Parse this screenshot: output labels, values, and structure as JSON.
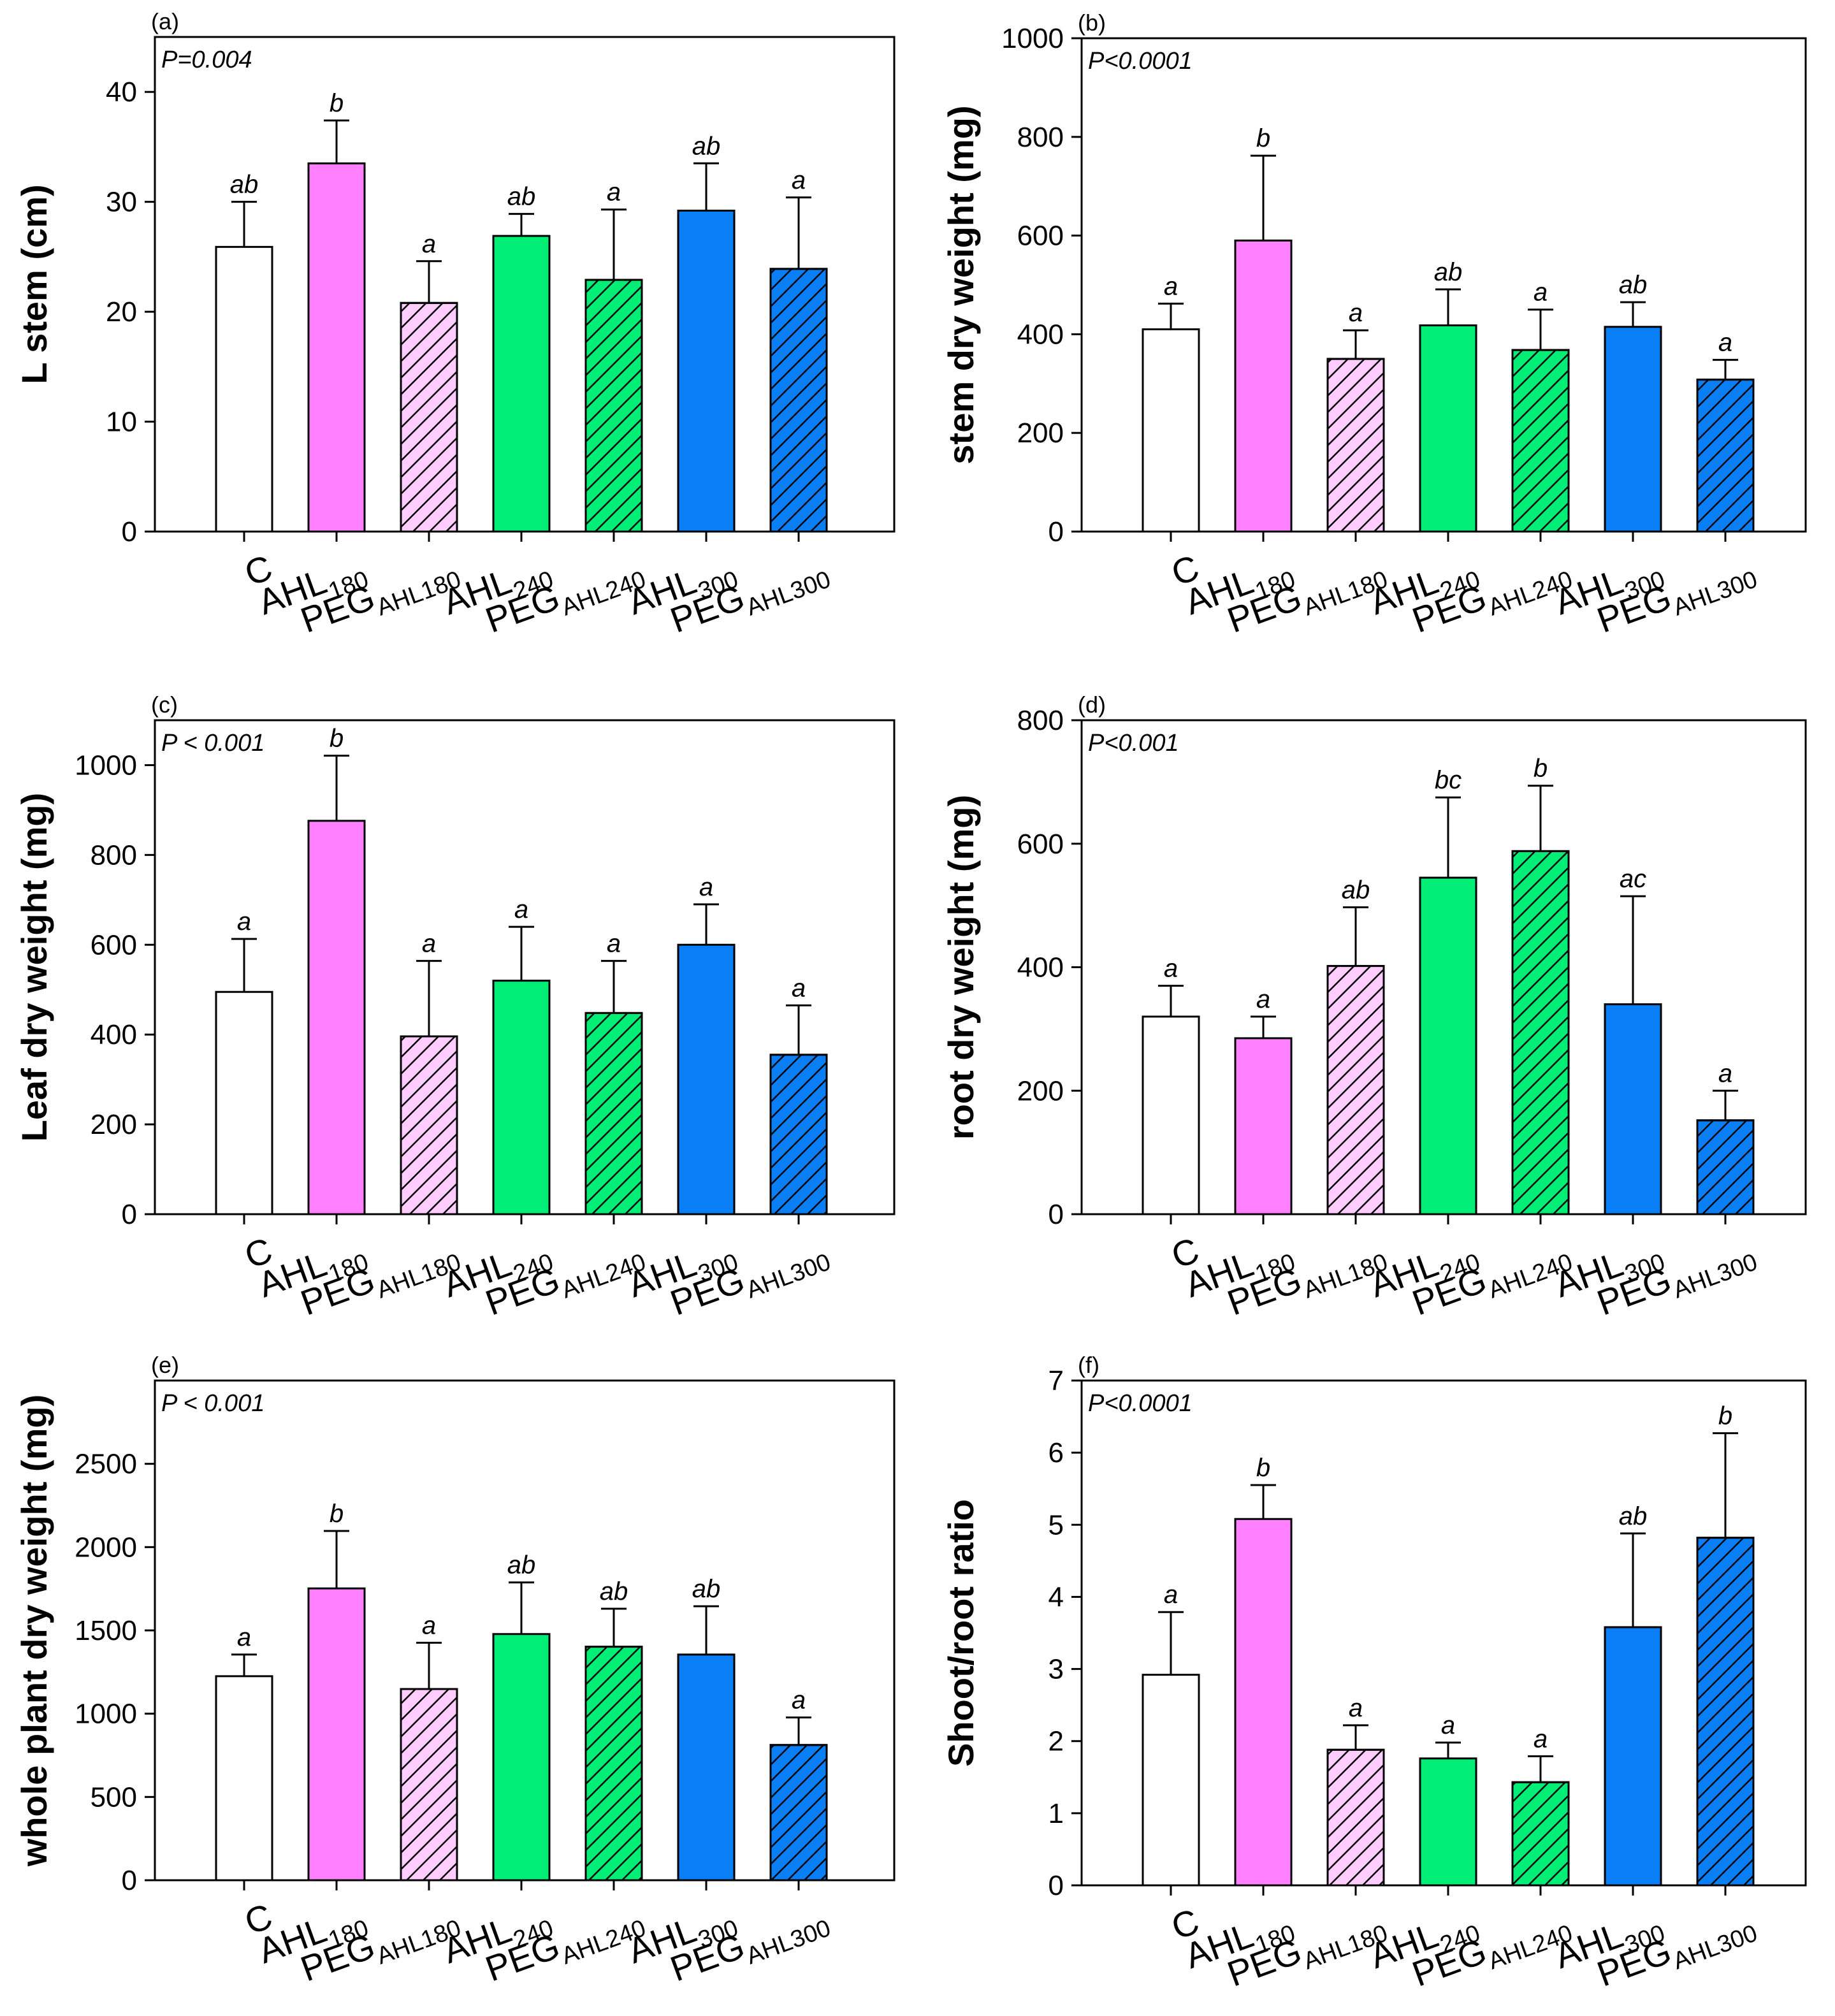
{
  "styles": [
    {
      "color": "#ffffff",
      "hatch": false
    },
    {
      "color": "#ff80ff",
      "hatch": false
    },
    {
      "color": "#ffccff",
      "hatch": true
    },
    {
      "color": "#00ee76",
      "hatch": false
    },
    {
      "color": "#00ee76",
      "hatch": true
    },
    {
      "color": "#0a7ff5",
      "hatch": false
    },
    {
      "color": "#0a7ff5",
      "hatch": true
    }
  ],
  "chart_data": [
    {
      "type": "bar",
      "panel": "(a)",
      "pvalue": "P=0.004",
      "ylabel": "L stem (cm)",
      "ylim": [
        0,
        45
      ],
      "yticks": [
        0,
        10,
        20,
        30,
        40
      ],
      "categories": [
        {
          "main": "C",
          "sub": ""
        },
        {
          "main": "AHL",
          "sub": "180"
        },
        {
          "main": "PEG",
          "sub": "AHL180"
        },
        {
          "main": "AHL",
          "sub": "240"
        },
        {
          "main": "PEG",
          "sub": "AHL240"
        },
        {
          "main": "AHL",
          "sub": "300"
        },
        {
          "main": "PEG",
          "sub": "AHL300"
        }
      ],
      "values": [
        25.9,
        33.5,
        20.8,
        26.9,
        22.9,
        29.2,
        23.9
      ],
      "errors": [
        4.1,
        3.9,
        3.8,
        2.0,
        6.4,
        4.3,
        6.5
      ],
      "letters": [
        "ab",
        "b",
        "a",
        "ab",
        "a",
        "ab",
        "a"
      ]
    },
    {
      "type": "bar",
      "panel": "(b)",
      "pvalue": "P<0.0001",
      "ylabel": "stem dry weight (mg)",
      "ylim": [
        0,
        1000
      ],
      "yticks": [
        0,
        200,
        400,
        600,
        800,
        1000
      ],
      "categories": [
        {
          "main": "C",
          "sub": ""
        },
        {
          "main": "AHL",
          "sub": "180"
        },
        {
          "main": "PEG",
          "sub": "AHL180"
        },
        {
          "main": "AHL",
          "sub": "240"
        },
        {
          "main": "PEG",
          "sub": "AHL240"
        },
        {
          "main": "AHL",
          "sub": "300"
        },
        {
          "main": "PEG",
          "sub": "AHL300"
        }
      ],
      "values": [
        410,
        590,
        350,
        418,
        368,
        415,
        308
      ],
      "errors": [
        52,
        172,
        58,
        73,
        82,
        50,
        40
      ],
      "letters": [
        "a",
        "b",
        "a",
        "ab",
        "a",
        "ab",
        "a"
      ]
    },
    {
      "type": "bar",
      "panel": "(c)",
      "pvalue": "P < 0.001",
      "ylabel": "Leaf dry weight (mg)",
      "ylim": [
        0,
        1100
      ],
      "yticks": [
        0,
        200,
        400,
        600,
        800,
        1000
      ],
      "categories": [
        {
          "main": "C",
          "sub": ""
        },
        {
          "main": "AHL",
          "sub": "180"
        },
        {
          "main": "PEG",
          "sub": "AHL180"
        },
        {
          "main": "AHL",
          "sub": "240"
        },
        {
          "main": "PEG",
          "sub": "AHL240"
        },
        {
          "main": "AHL",
          "sub": "300"
        },
        {
          "main": "PEG",
          "sub": "AHL300"
        }
      ],
      "values": [
        495,
        876,
        396,
        520,
        448,
        600,
        355
      ],
      "errors": [
        118,
        145,
        168,
        120,
        116,
        90,
        110
      ],
      "letters": [
        "a",
        "b",
        "a",
        "a",
        "a",
        "a",
        "a"
      ]
    },
    {
      "type": "bar",
      "panel": "(d)",
      "pvalue": "P<0.001",
      "ylabel": "root dry weight (mg)",
      "ylim": [
        0,
        800
      ],
      "yticks": [
        0,
        200,
        400,
        600,
        800
      ],
      "categories": [
        {
          "main": "C",
          "sub": ""
        },
        {
          "main": "AHL",
          "sub": "180"
        },
        {
          "main": "PEG",
          "sub": "AHL180"
        },
        {
          "main": "AHL",
          "sub": "240"
        },
        {
          "main": "PEG",
          "sub": "AHL240"
        },
        {
          "main": "AHL",
          "sub": "300"
        },
        {
          "main": "PEG",
          "sub": "AHL300"
        }
      ],
      "values": [
        320,
        285,
        402,
        545,
        588,
        340,
        152
      ],
      "errors": [
        50,
        35,
        95,
        130,
        106,
        175,
        48
      ],
      "letters": [
        "a",
        "a",
        "ab",
        "bc",
        "b",
        "ac",
        "a"
      ]
    },
    {
      "type": "bar",
      "panel": "(e)",
      "pvalue": "P < 0.001",
      "ylabel": "whole plant dry weight (mg)",
      "ylim": [
        0,
        3000
      ],
      "yticks": [
        0,
        500,
        1000,
        1500,
        2000,
        2500
      ],
      "categories": [
        {
          "main": "C",
          "sub": ""
        },
        {
          "main": "AHL",
          "sub": "180"
        },
        {
          "main": "PEG",
          "sub": "AHL180"
        },
        {
          "main": "AHL",
          "sub": "240"
        },
        {
          "main": "PEG",
          "sub": "AHL240"
        },
        {
          "main": "AHL",
          "sub": "300"
        },
        {
          "main": "PEG",
          "sub": "AHL300"
        }
      ],
      "values": [
        1225,
        1752,
        1148,
        1478,
        1402,
        1355,
        812
      ],
      "errors": [
        130,
        345,
        278,
        310,
        228,
        290,
        165
      ],
      "letters": [
        "a",
        "b",
        "a",
        "ab",
        "ab",
        "ab",
        "a"
      ]
    },
    {
      "type": "bar",
      "panel": "(f)",
      "pvalue": "P<0.0001",
      "ylabel": "Shoot/root ratio",
      "ylim": [
        0,
        7
      ],
      "yticks": [
        0,
        1,
        2,
        3,
        4,
        5,
        6,
        7
      ],
      "categories": [
        {
          "main": "C",
          "sub": ""
        },
        {
          "main": "AHL",
          "sub": "180"
        },
        {
          "main": "PEG",
          "sub": "AHL180"
        },
        {
          "main": "AHL",
          "sub": "240"
        },
        {
          "main": "PEG",
          "sub": "AHL240"
        },
        {
          "main": "AHL",
          "sub": "300"
        },
        {
          "main": "PEG",
          "sub": "AHL300"
        }
      ],
      "values": [
        2.92,
        5.08,
        1.88,
        1.76,
        1.43,
        3.58,
        4.82
      ],
      "errors": [
        0.87,
        0.47,
        0.34,
        0.22,
        0.36,
        1.3,
        1.45
      ],
      "letters": [
        "a",
        "b",
        "a",
        "a",
        "a",
        "ab",
        "b"
      ]
    }
  ]
}
